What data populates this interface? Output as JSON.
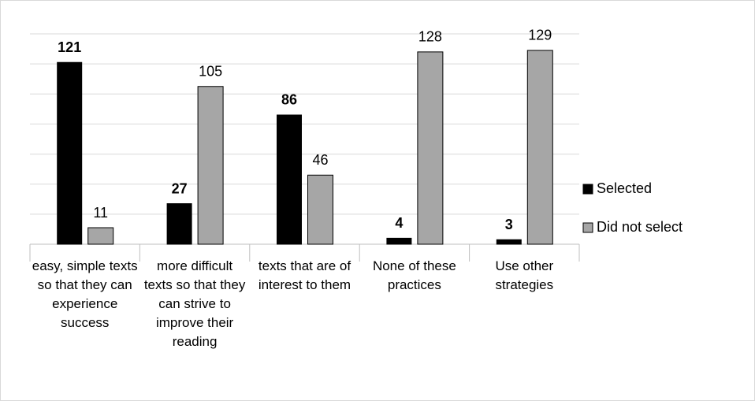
{
  "chart_data": {
    "type": "bar",
    "categories": [
      "easy, simple texts so that they can experience success",
      "more difficult texts so that they can strive to improve their reading",
      "texts that are of interest to them",
      "None of these practices",
      "Use other strategies"
    ],
    "series": [
      {
        "name": "Selected",
        "color": "#000000",
        "values": [
          121,
          27,
          86,
          4,
          3
        ]
      },
      {
        "name": "Did not select",
        "color": "#a6a6a6",
        "values": [
          11,
          105,
          46,
          128,
          129
        ]
      }
    ],
    "ylim": [
      0,
      140
    ],
    "yticks": [
      0,
      20,
      40,
      60,
      80,
      100,
      120,
      140
    ],
    "grid": true,
    "legend": "right"
  }
}
